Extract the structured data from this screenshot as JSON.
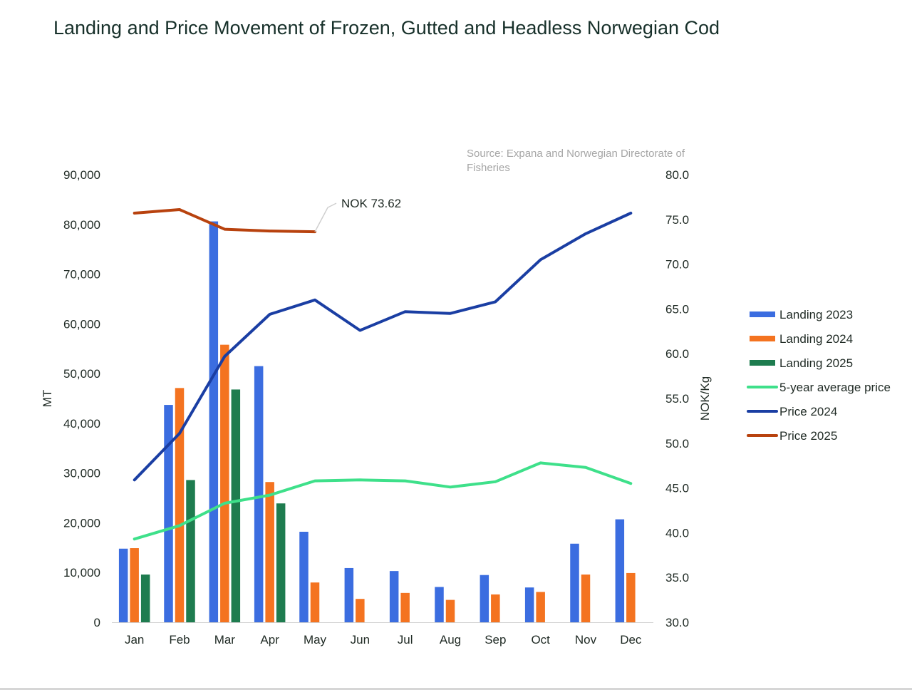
{
  "chart_data": {
    "type": "bar",
    "title": "Landing and Price Movement of Frozen, Gutted and Headless Norwegian Cod",
    "source": "Source: Expana and Norwegian Directorate of Fisheries",
    "categories": [
      "Jan",
      "Feb",
      "Mar",
      "Apr",
      "May",
      "Jun",
      "Jul",
      "Aug",
      "Sep",
      "Oct",
      "Nov",
      "Dec"
    ],
    "y_left": {
      "label": "MT",
      "ylim": [
        0,
        90000
      ],
      "ticks": [
        "0",
        "10,000",
        "20,000",
        "30,000",
        "40,000",
        "50,000",
        "60,000",
        "70,000",
        "80,000",
        "90,000"
      ]
    },
    "y_right": {
      "label": "NOK/Kg",
      "ylim": [
        30,
        80
      ],
      "ticks": [
        "30.0",
        "35.0",
        "40.0",
        "45.0",
        "50.0",
        "55.0",
        "60.0",
        "65.0",
        "70.0",
        "75.0",
        "80.0"
      ]
    },
    "bar_series": [
      {
        "name": "Landing 2023",
        "color": "#3b6de0",
        "values": [
          14800,
          43700,
          80600,
          51500,
          18200,
          10900,
          10300,
          7100,
          9500,
          7000,
          15800,
          20700
        ]
      },
      {
        "name": "Landing 2024",
        "color": "#f47320",
        "values": [
          14900,
          47100,
          55800,
          28200,
          8000,
          4700,
          5900,
          4500,
          5600,
          6100,
          9600,
          9900
        ]
      },
      {
        "name": "Landing 2025",
        "color": "#1e7c4f",
        "values": [
          9600,
          28600,
          46800,
          23900,
          null,
          null,
          null,
          null,
          null,
          null,
          null,
          null
        ]
      }
    ],
    "line_series": [
      {
        "name": "5-year average price",
        "color": "#3ee08a",
        "values": [
          39.3,
          40.8,
          43.3,
          44.2,
          45.8,
          45.9,
          45.8,
          45.1,
          45.7,
          47.8,
          47.3,
          45.5
        ]
      },
      {
        "name": "Price 2024",
        "color": "#1a3ea3",
        "values": [
          45.9,
          51.1,
          59.7,
          64.4,
          66.0,
          62.6,
          64.7,
          64.5,
          65.8,
          70.5,
          73.4,
          75.7
        ]
      },
      {
        "name": "Price 2025",
        "color": "#b8420e",
        "values": [
          75.7,
          76.1,
          73.9,
          73.7,
          73.62,
          null,
          null,
          null,
          null,
          null,
          null,
          null
        ]
      }
    ],
    "annotation": {
      "text": "NOK 73.62",
      "series": "Price 2025",
      "category": "May"
    },
    "legend_position": "right",
    "grid": false
  }
}
